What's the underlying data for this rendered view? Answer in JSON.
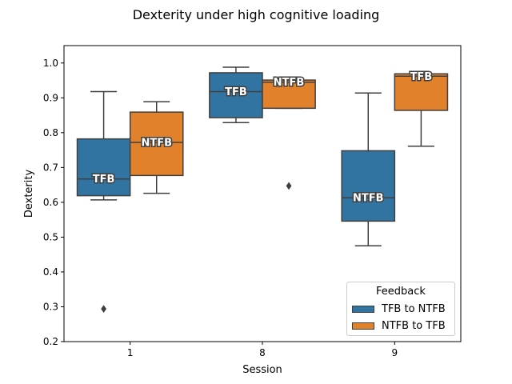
{
  "title": "Dexterity under high cognitive loading",
  "chart_data": {
    "type": "box",
    "title": "Dexterity under high cognitive loading",
    "xlabel": "Session",
    "ylabel": "Dexterity",
    "categories": [
      "1",
      "8",
      "9"
    ],
    "ylim": [
      0.2,
      1.05
    ],
    "yticks": [
      "0.2",
      "0.3",
      "0.4",
      "0.5",
      "0.6",
      "0.7",
      "0.8",
      "0.9",
      "1.0"
    ],
    "grid": false,
    "legend": {
      "title": "Feedback",
      "position": "lower-right"
    },
    "series": [
      {
        "name": "TFB to NTFB",
        "color": "#3274a1",
        "boxes": [
          {
            "category": "1",
            "whisker_low": 0.607,
            "q1": 0.619,
            "median": 0.667,
            "q3": 0.782,
            "whisker_high": 0.918,
            "outliers": [
              0.294
            ],
            "label": "TFB"
          },
          {
            "category": "8",
            "whisker_low": 0.829,
            "q1": 0.843,
            "median": 0.918,
            "q3": 0.972,
            "whisker_high": 0.988,
            "outliers": [],
            "label": "TFB"
          },
          {
            "category": "9",
            "whisker_low": 0.475,
            "q1": 0.546,
            "median": 0.613,
            "q3": 0.748,
            "whisker_high": 0.914,
            "outliers": [],
            "label": "NTFB"
          }
        ]
      },
      {
        "name": "NTFB to TFB",
        "color": "#e1812c",
        "boxes": [
          {
            "category": "1",
            "whisker_low": 0.626,
            "q1": 0.677,
            "median": 0.772,
            "q3": 0.859,
            "whisker_high": 0.889,
            "outliers": [],
            "label": "NTFB"
          },
          {
            "category": "8",
            "whisker_low": 0.87,
            "q1": 0.87,
            "median": 0.945,
            "q3": 0.951,
            "whisker_high": 0.951,
            "outliers": [
              0.647
            ],
            "label": "NTFB"
          },
          {
            "category": "9",
            "whisker_low": 0.761,
            "q1": 0.864,
            "median": 0.962,
            "q3": 0.969,
            "whisker_high": 0.969,
            "outliers": [],
            "label": "TFB"
          }
        ]
      }
    ]
  }
}
